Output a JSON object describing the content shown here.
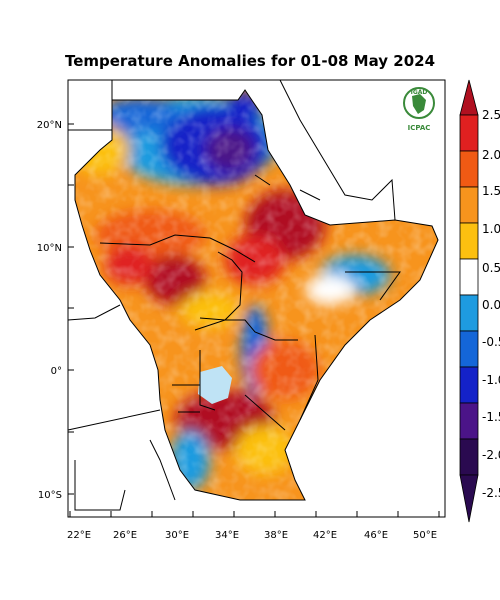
{
  "title": "Temperature Anomalies for 01-08 May 2024",
  "logo": {
    "top_text": "IGAD",
    "bottom_text": "ICPAC",
    "color": "#3a8a3a"
  },
  "axes": {
    "lon_ticks": [
      "22°E",
      "26°E",
      "30°E",
      "34°E",
      "38°E",
      "42°E",
      "46°E",
      "50°E"
    ],
    "lat_ticks": [
      "20°N",
      "10°N",
      "0°",
      "10°S"
    ]
  },
  "colorbar": {
    "labels": [
      "2.5",
      "2.0",
      "1.5",
      "1.0",
      "0.5",
      "0.0",
      "-0.5",
      "-1.0",
      "-1.5",
      "-2.0",
      "-2.5"
    ],
    "colors": [
      "#b01020",
      "#e02020",
      "#f05a14",
      "#f7941d",
      "#fcc010",
      "#ffffff",
      "#1e9be0",
      "#1466d8",
      "#1422c8",
      "#4b1488",
      "#2a0a50"
    ]
  },
  "lake_color": "#bfe3f5"
}
